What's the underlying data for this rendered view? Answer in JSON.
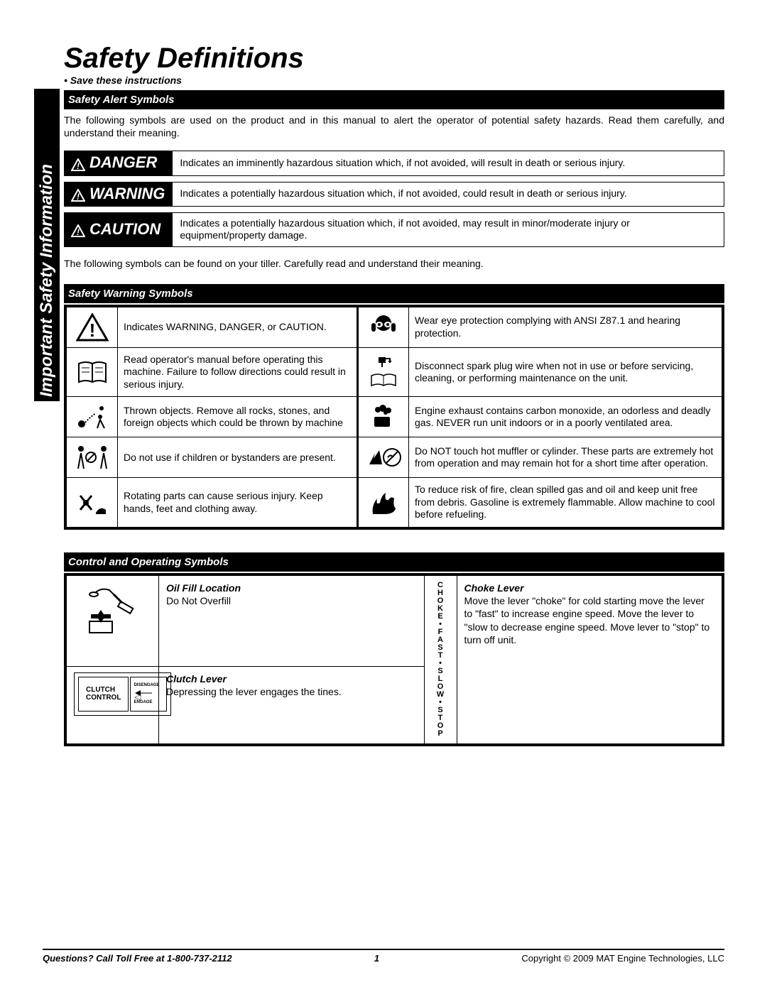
{
  "sidebar": {
    "label": "Important Safety Information"
  },
  "title": "Safety Definitions",
  "save_instructions": "• Save these instructions",
  "sections": {
    "alert_header": "Safety Alert Symbols",
    "alert_intro": "The following symbols are used on the product and in this manual to alert the operator of potential safety hazards.  Read them carefully, and understand their meaning.",
    "alert_rows": {
      "danger": {
        "label": "DANGER",
        "desc": "Indicates an imminently hazardous situation which, if not avoided, will result in death or serious injury."
      },
      "warning": {
        "label": "WARNING",
        "desc": "Indicates a potentially hazardous situation which, if not avoided, could result in death or serious injury."
      },
      "caution": {
        "label": "CAUTION",
        "desc": "Indicates a potentially hazardous situation which, if not avoided, may result in minor/moderate injury or equipment/property damage."
      }
    },
    "tiller_intro": "The following symbols can be found on your tiller.  Carefully read and understand their meaning.",
    "warning_header": "Safety Warning Symbols",
    "warning_rows": {
      "r1l": "Indicates WARNING, DANGER, or CAUTION.",
      "r1r": "Wear eye protection complying with ANSI Z87.1 and hearing protection.",
      "r2l": "Read operator's manual before operating this machine.  Failure to follow directions could result in serious injury.",
      "r2r": "Disconnect spark plug wire when not in use or before servicing, cleaning, or performing maintenance on the unit.",
      "r3l": "Thrown objects. Remove all rocks, stones, and foreign objects which could be thrown by machine",
      "r3r": "Engine exhaust contains carbon monoxide, an odorless and deadly gas.  NEVER run unit indoors or in a poorly ventilated area.",
      "r4l": "Do not use if children or bystanders are present.",
      "r4r": "Do NOT touch hot muffler or cylinder.  These parts are extremely hot from operation and may remain hot for a short time after operation.",
      "r5l": "Rotating parts can cause serious injury.  Keep hands, feet and clothing away.",
      "r5r": "To reduce risk of fire, clean spilled gas and oil and keep unit free from debris. Gasoline is extremely flammable. Allow machine to cool before refueling."
    },
    "controls_header": "Control and Operating Symbols",
    "controls": {
      "oil": {
        "title": "Oil Fill Location",
        "desc": "Do Not Overfill"
      },
      "clutch": {
        "title": "Clutch Lever",
        "desc": "Depressing the lever engages the tines.",
        "label_main": "CLUTCH CONTROL",
        "label_dis": "DISENGAGE",
        "label_eng": "ENGAGE"
      },
      "choke": {
        "title": "Choke Lever",
        "desc": "Move the lever \"choke\" for cold starting move the lever to \"fast\" to increase engine speed. Move the lever to \"slow to decrease engine speed. Move lever to \"stop\" to turn off unit."
      },
      "choke_vert": "C\nH\nO\nK\nE\n•\nF\nA\nS\nT\n•\nS\nL\nO\nW\n•\nS\nT\nO\nP"
    }
  },
  "footer": {
    "questions": "Questions? Call Toll Free at 1-800-737-2112",
    "page": "1",
    "copyright": "Copyright © 2009 MAT Engine Technologies, LLC"
  }
}
